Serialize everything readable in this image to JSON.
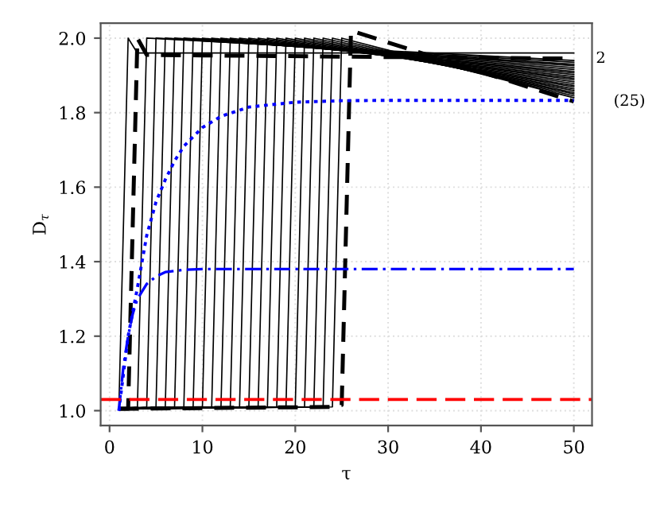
{
  "chart_data": {
    "type": "line",
    "xlabel": "τ",
    "ylabel": "D$_{τ}$",
    "xlim": [
      -0.96,
      51.96
    ],
    "ylim": [
      0.96,
      2.04
    ],
    "xticks": [
      0,
      10,
      20,
      30,
      40,
      50
    ],
    "yticks": [
      {
        "value": 1.0,
        "label": "1.0"
      },
      {
        "value": 1.2,
        "label": "1.2"
      },
      {
        "value": 1.4,
        "label": "1.4"
      },
      {
        "value": 1.6,
        "label": "1.6"
      },
      {
        "value": 1.8,
        "label": "1.8"
      },
      {
        "value": 2.0,
        "label": "2.0"
      }
    ],
    "grid": true,
    "marker": "none",
    "ref_lines": [
      {
        "axis": "y",
        "value": 1.03,
        "color": "#ff0000",
        "line_style": "dashed"
      }
    ],
    "annotations": [
      {
        "text": "2",
        "x": 50,
        "y": 1.945
      },
      {
        "text": "(25)",
        "x": 50,
        "y": 1.83
      }
    ],
    "series": [
      {
        "color": "#000000",
        "line_style": "solid",
        "x": [
          1,
          2,
          3,
          50
        ],
        "values": [
          1.005,
          2.0,
          1.96,
          1.96
        ]
      },
      {
        "color": "#000000",
        "line_style": "dashed",
        "x": [
          1,
          2,
          3,
          4,
          50
        ],
        "values": [
          1.005,
          1.005,
          2.0,
          1.955,
          1.945
        ]
      },
      {
        "color": "#000000",
        "line_style": "solid",
        "x": [
          1,
          3,
          4,
          50
        ],
        "values": [
          1.005,
          1.01,
          2.0,
          1.94
        ]
      },
      {
        "color": "#000000",
        "line_style": "solid",
        "x": [
          1,
          4,
          5,
          50
        ],
        "values": [
          1.005,
          1.01,
          2.0,
          1.935
        ]
      },
      {
        "color": "#000000",
        "line_style": "solid",
        "x": [
          1,
          5,
          6,
          50
        ],
        "values": [
          1.005,
          1.01,
          2.0,
          1.93
        ]
      },
      {
        "color": "#000000",
        "line_style": "solid",
        "x": [
          1,
          6,
          7,
          50
        ],
        "values": [
          1.005,
          1.01,
          2.0,
          1.926
        ]
      },
      {
        "color": "#000000",
        "line_style": "solid",
        "x": [
          1,
          7,
          8,
          50
        ],
        "values": [
          1.005,
          1.01,
          2.0,
          1.921
        ]
      },
      {
        "color": "#000000",
        "line_style": "solid",
        "x": [
          1,
          8,
          9,
          50
        ],
        "values": [
          1.005,
          1.01,
          2.0,
          1.916
        ]
      },
      {
        "color": "#000000",
        "line_style": "solid",
        "x": [
          1,
          9,
          10,
          50
        ],
        "values": [
          1.005,
          1.01,
          2.0,
          1.911
        ]
      },
      {
        "color": "#000000",
        "line_style": "solid",
        "x": [
          1,
          10,
          11,
          50
        ],
        "values": [
          1.005,
          1.01,
          2.0,
          1.907
        ]
      },
      {
        "color": "#000000",
        "line_style": "solid",
        "x": [
          1,
          11,
          12,
          50
        ],
        "values": [
          1.005,
          1.01,
          2.0,
          1.902
        ]
      },
      {
        "color": "#000000",
        "line_style": "solid",
        "x": [
          1,
          12,
          13,
          50
        ],
        "values": [
          1.005,
          1.01,
          2.0,
          1.897
        ]
      },
      {
        "color": "#000000",
        "line_style": "solid",
        "x": [
          1,
          13,
          14,
          50
        ],
        "values": [
          1.005,
          1.01,
          2.0,
          1.892
        ]
      },
      {
        "color": "#000000",
        "line_style": "solid",
        "x": [
          1,
          14,
          15,
          50
        ],
        "values": [
          1.005,
          1.01,
          2.0,
          1.888
        ]
      },
      {
        "color": "#000000",
        "line_style": "solid",
        "x": [
          1,
          15,
          16,
          50
        ],
        "values": [
          1.005,
          1.01,
          2.0,
          1.883
        ]
      },
      {
        "color": "#000000",
        "line_style": "solid",
        "x": [
          1,
          16,
          17,
          50
        ],
        "values": [
          1.005,
          1.01,
          2.0,
          1.878
        ]
      },
      {
        "color": "#000000",
        "line_style": "solid",
        "x": [
          1,
          17,
          18,
          50
        ],
        "values": [
          1.005,
          1.01,
          2.0,
          1.873
        ]
      },
      {
        "color": "#000000",
        "line_style": "solid",
        "x": [
          1,
          18,
          19,
          50
        ],
        "values": [
          1.005,
          1.01,
          2.0,
          1.869
        ]
      },
      {
        "color": "#000000",
        "line_style": "solid",
        "x": [
          1,
          19,
          20,
          50
        ],
        "values": [
          1.005,
          1.01,
          2.0,
          1.864
        ]
      },
      {
        "color": "#000000",
        "line_style": "solid",
        "x": [
          1,
          20,
          21,
          50
        ],
        "values": [
          1.005,
          1.01,
          2.0,
          1.859
        ]
      },
      {
        "color": "#000000",
        "line_style": "solid",
        "x": [
          1,
          21,
          22,
          50
        ],
        "values": [
          1.005,
          1.01,
          2.0,
          1.854
        ]
      },
      {
        "color": "#000000",
        "line_style": "solid",
        "x": [
          1,
          22,
          23,
          50
        ],
        "values": [
          1.005,
          1.01,
          2.0,
          1.85
        ]
      },
      {
        "color": "#000000",
        "line_style": "solid",
        "x": [
          1,
          23,
          24,
          50
        ],
        "values": [
          1.005,
          1.01,
          2.0,
          1.845
        ]
      },
      {
        "color": "#000000",
        "line_style": "solid",
        "x": [
          1,
          24,
          25,
          50
        ],
        "values": [
          1.005,
          1.01,
          2.0,
          1.84
        ]
      },
      {
        "color": "#000000",
        "line_style": "dashed",
        "x": [
          1,
          24,
          25,
          26,
          50
        ],
        "values": [
          1.005,
          1.01,
          1.015,
          2.02,
          1.83
        ]
      },
      {
        "color": "#0000ff",
        "line_style": "dotted",
        "x": [
          1,
          2,
          3,
          4,
          5,
          6,
          7,
          8,
          10,
          12,
          15,
          20,
          25,
          30,
          50
        ],
        "values": [
          1.0,
          1.2,
          1.33,
          1.47,
          1.56,
          1.62,
          1.67,
          1.71,
          1.76,
          1.79,
          1.815,
          1.828,
          1.832,
          1.833,
          1.833
        ]
      },
      {
        "color": "#0000ff",
        "line_style": "dashdot",
        "x": [
          1,
          1.5,
          2,
          2.5,
          3,
          4,
          5,
          6,
          8,
          10,
          50
        ],
        "values": [
          1.0,
          1.12,
          1.2,
          1.26,
          1.3,
          1.34,
          1.36,
          1.372,
          1.378,
          1.38,
          1.38
        ]
      }
    ]
  }
}
